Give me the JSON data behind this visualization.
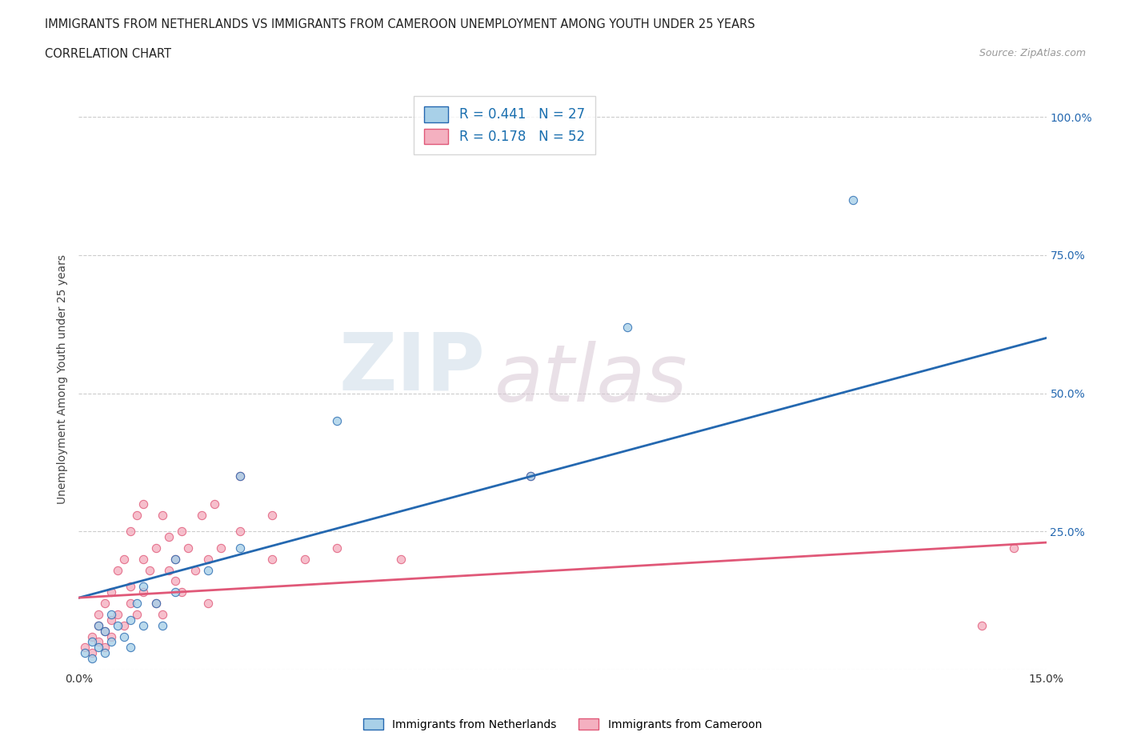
{
  "title_line1": "IMMIGRANTS FROM NETHERLANDS VS IMMIGRANTS FROM CAMEROON UNEMPLOYMENT AMONG YOUTH UNDER 25 YEARS",
  "title_line2": "CORRELATION CHART",
  "source_text": "Source: ZipAtlas.com",
  "ylabel": "Unemployment Among Youth under 25 years",
  "xlim": [
    0.0,
    0.15
  ],
  "ylim": [
    0.0,
    1.05
  ],
  "ytick_values": [
    0.0,
    0.25,
    0.5,
    0.75,
    1.0
  ],
  "ytick_right_labels": [
    "",
    "25.0%",
    "50.0%",
    "75.0%",
    "100.0%"
  ],
  "netherlands_R": 0.441,
  "netherlands_N": 27,
  "cameroon_R": 0.178,
  "cameroon_N": 52,
  "netherlands_color": "#a8d0e8",
  "cameroon_color": "#f4b0c0",
  "netherlands_line_color": "#2468b0",
  "cameroon_line_color": "#e05878",
  "nl_line_y0": 0.13,
  "nl_line_y1": 0.6,
  "cm_line_y0": 0.13,
  "cm_line_y1": 0.23,
  "netherlands_scatter_x": [
    0.001,
    0.002,
    0.002,
    0.003,
    0.003,
    0.004,
    0.004,
    0.005,
    0.005,
    0.006,
    0.007,
    0.008,
    0.008,
    0.009,
    0.01,
    0.01,
    0.012,
    0.013,
    0.015,
    0.015,
    0.02,
    0.025,
    0.025,
    0.04,
    0.07,
    0.085,
    0.12
  ],
  "netherlands_scatter_y": [
    0.03,
    0.05,
    0.02,
    0.08,
    0.04,
    0.07,
    0.03,
    0.1,
    0.05,
    0.08,
    0.06,
    0.09,
    0.04,
    0.12,
    0.08,
    0.15,
    0.12,
    0.08,
    0.14,
    0.2,
    0.18,
    0.22,
    0.35,
    0.45,
    0.35,
    0.62,
    0.85
  ],
  "cameroon_scatter_x": [
    0.001,
    0.002,
    0.002,
    0.003,
    0.003,
    0.003,
    0.004,
    0.004,
    0.004,
    0.005,
    0.005,
    0.005,
    0.006,
    0.006,
    0.007,
    0.007,
    0.008,
    0.008,
    0.008,
    0.009,
    0.009,
    0.01,
    0.01,
    0.01,
    0.011,
    0.012,
    0.012,
    0.013,
    0.013,
    0.014,
    0.014,
    0.015,
    0.015,
    0.016,
    0.016,
    0.017,
    0.018,
    0.019,
    0.02,
    0.02,
    0.021,
    0.022,
    0.025,
    0.025,
    0.03,
    0.03,
    0.035,
    0.04,
    0.05,
    0.07,
    0.14,
    0.145
  ],
  "cameroon_scatter_y": [
    0.04,
    0.06,
    0.03,
    0.08,
    0.05,
    0.1,
    0.07,
    0.12,
    0.04,
    0.09,
    0.14,
    0.06,
    0.1,
    0.18,
    0.08,
    0.2,
    0.12,
    0.15,
    0.25,
    0.1,
    0.28,
    0.14,
    0.2,
    0.3,
    0.18,
    0.12,
    0.22,
    0.28,
    0.1,
    0.18,
    0.24,
    0.2,
    0.16,
    0.25,
    0.14,
    0.22,
    0.18,
    0.28,
    0.2,
    0.12,
    0.3,
    0.22,
    0.25,
    0.35,
    0.2,
    0.28,
    0.2,
    0.22,
    0.2,
    0.35,
    0.08,
    0.22
  ]
}
